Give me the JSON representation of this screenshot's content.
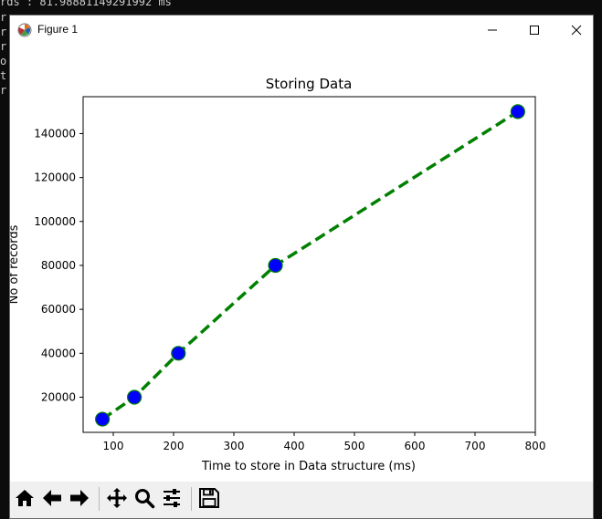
{
  "console": {
    "lines": [
      "rds : 81.98881149291992 ms",
      "r",
      "r",
      "r",
      "o",
      "t",
      "r"
    ]
  },
  "window": {
    "title": "Figure 1",
    "controls": [
      "minimize",
      "maximize",
      "close"
    ]
  },
  "chart_data": {
    "type": "line",
    "title": "Storing Data",
    "xlabel": "Time to store in Data structure (ms)",
    "ylabel": "No of records",
    "x": [
      82,
      135,
      208,
      369,
      771
    ],
    "series": [
      {
        "values": [
          10000,
          20000,
          40000,
          80000,
          150000
        ],
        "color": "#008000",
        "linestyle": "dashed",
        "marker": "circle",
        "marker_color": "#0000ff"
      }
    ],
    "xlim": [
      50,
      800
    ],
    "ylim": [
      4000,
      156800
    ],
    "xticks": [
      100,
      200,
      300,
      400,
      500,
      600,
      700,
      800
    ],
    "yticks": [
      20000,
      40000,
      60000,
      80000,
      100000,
      120000,
      140000
    ],
    "grid": false
  },
  "toolbar": {
    "buttons": [
      {
        "name": "home",
        "icon": "home-icon"
      },
      {
        "name": "back",
        "icon": "arrow-left-icon"
      },
      {
        "name": "forward",
        "icon": "arrow-right-icon"
      },
      {
        "name": "pan",
        "icon": "move-icon"
      },
      {
        "name": "zoom",
        "icon": "magnifier-icon"
      },
      {
        "name": "configure",
        "icon": "sliders-icon"
      },
      {
        "name": "save",
        "icon": "floppy-disk-icon"
      }
    ]
  }
}
